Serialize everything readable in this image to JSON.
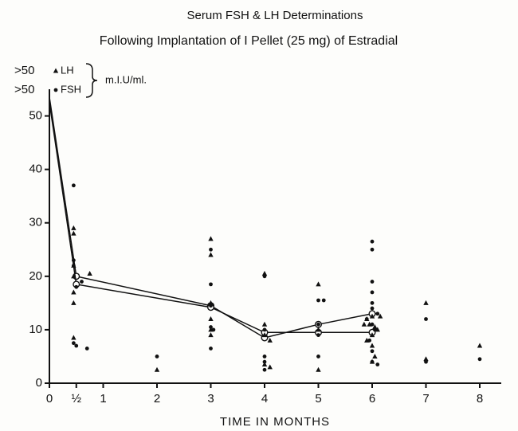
{
  "chart_data": {
    "type": "scatter",
    "title": "Serum FSH & LH Determinations",
    "subtitle": "Following Implantation of I Pellet (25 mg) of Estradial",
    "x_label": "TIME IN MONTHS",
    "unit_label": "m.I.U/ml.",
    "annotations": [
      ">50",
      ">50"
    ],
    "xlim": [
      0,
      8.4
    ],
    "ylim": [
      0,
      55
    ],
    "xticks": [
      0,
      {
        "value": 0.5,
        "label": "½"
      },
      1,
      2,
      3,
      4,
      5,
      6,
      7,
      8
    ],
    "yticks": [
      0,
      10,
      20,
      30,
      40,
      50
    ],
    "color": "#111",
    "series": [
      {
        "name": "LH",
        "marker": "triangle",
        "x": [
          0.45,
          0.45,
          0.45,
          0.45,
          0.45,
          0.45,
          0.45,
          0.75,
          2,
          3,
          3,
          3,
          3,
          3,
          3,
          4,
          4,
          4,
          4.1,
          4,
          4.1,
          5,
          5,
          5,
          5.85,
          5.9,
          5.95,
          6,
          6.05,
          6.1,
          6.15,
          6,
          5.9,
          6,
          6.05,
          6,
          7,
          7,
          8
        ],
        "values": [
          29,
          28,
          22,
          20,
          17,
          15,
          8.5,
          20.5,
          2.5,
          27,
          24,
          15,
          12,
          10,
          9,
          20.5,
          11,
          9,
          8,
          3.5,
          3,
          18.5,
          10,
          2.5,
          11,
          12,
          11,
          12.5,
          10.5,
          10,
          12.5,
          9,
          8,
          7,
          5,
          4,
          15,
          4.5,
          7
        ]
      },
      {
        "name": "FSH",
        "marker": "dot",
        "x": [
          0.45,
          0.45,
          0.45,
          0.6,
          0.5,
          0.45,
          0.5,
          0.7,
          2,
          3,
          3,
          3,
          3,
          3.05,
          3,
          4,
          4,
          4,
          4,
          4,
          5,
          5.1,
          5,
          5,
          5,
          6,
          6,
          6,
          6,
          6,
          6,
          6.1,
          5.9,
          6,
          6.05,
          5.95,
          6,
          6,
          6.1,
          7,
          7,
          8
        ],
        "values": [
          37,
          23,
          22,
          19,
          18,
          7.5,
          7,
          6.5,
          5,
          25,
          18.5,
          14.5,
          10.5,
          10,
          6.5,
          20,
          10,
          5,
          4,
          2.5,
          15.5,
          15.5,
          11,
          9,
          5,
          26.5,
          25,
          19,
          17,
          15,
          14,
          13,
          12,
          11,
          10,
          8,
          6,
          4,
          3.5,
          12,
          4,
          4.5
        ]
      }
    ],
    "lines": [
      {
        "x": [
          0,
          0.5,
          3,
          4,
          5,
          6
        ],
        "values": [
          53.5,
          20,
          14.5,
          8.5,
          11,
          13
        ]
      },
      {
        "x": [
          0,
          0.5,
          3,
          4,
          5,
          6
        ],
        "values": [
          52.5,
          18.5,
          14.2,
          9.5,
          9.5,
          9.5
        ]
      }
    ]
  }
}
